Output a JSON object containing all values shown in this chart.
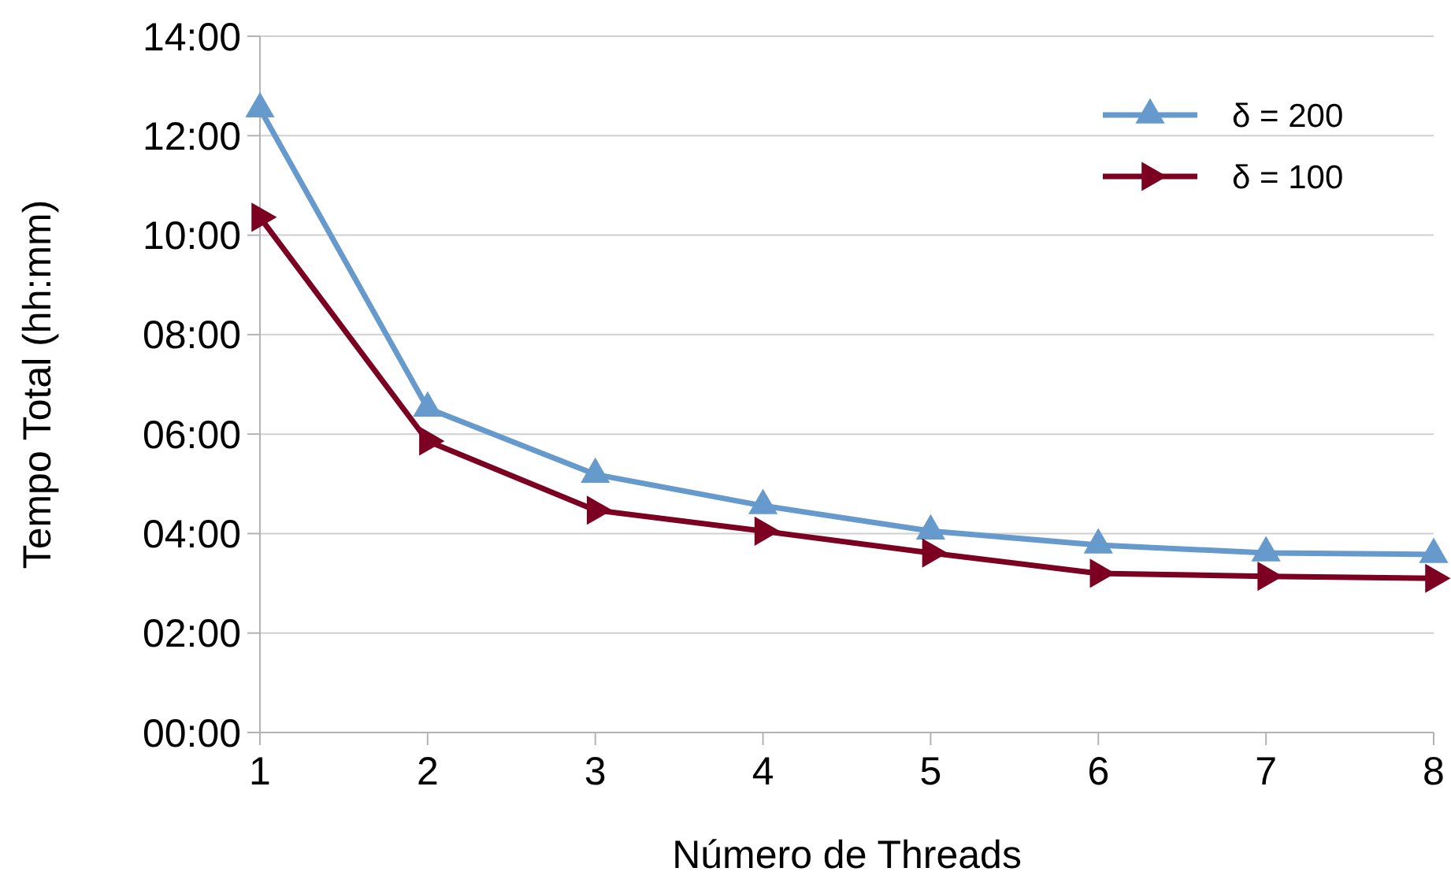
{
  "chart_data": {
    "type": "line",
    "xlabel": "Número de Threads",
    "ylabel": "Tempo Total (hh:mm)",
    "x": [
      1,
      2,
      3,
      4,
      5,
      6,
      7,
      8
    ],
    "series": [
      {
        "name": "δ = 200",
        "color": "#6699cc",
        "marker": "triangle",
        "values": [
          12.54,
          6.52,
          5.19,
          4.56,
          4.05,
          3.77,
          3.61,
          3.58
        ]
      },
      {
        "name": "δ = 100",
        "color": "#7b0022",
        "marker": "triangle",
        "values": [
          10.36,
          5.86,
          4.47,
          4.05,
          3.61,
          3.2,
          3.14,
          3.1
        ]
      }
    ],
    "xlim": [
      1,
      8
    ],
    "xticks": [
      1,
      2,
      3,
      4,
      5,
      6,
      7,
      8
    ],
    "ylim": [
      0,
      14
    ],
    "yticks": [
      {
        "value": 0,
        "label": "00:00"
      },
      {
        "value": 2,
        "label": "02:00"
      },
      {
        "value": 4,
        "label": "04:00"
      },
      {
        "value": 6,
        "label": "06:00"
      },
      {
        "value": 8,
        "label": "08:00"
      },
      {
        "value": 10,
        "label": "10:00"
      },
      {
        "value": 12,
        "label": "12:00"
      },
      {
        "value": 14,
        "label": "14:00"
      }
    ],
    "grid": "y",
    "legend": "top right",
    "line_style": "solid"
  }
}
